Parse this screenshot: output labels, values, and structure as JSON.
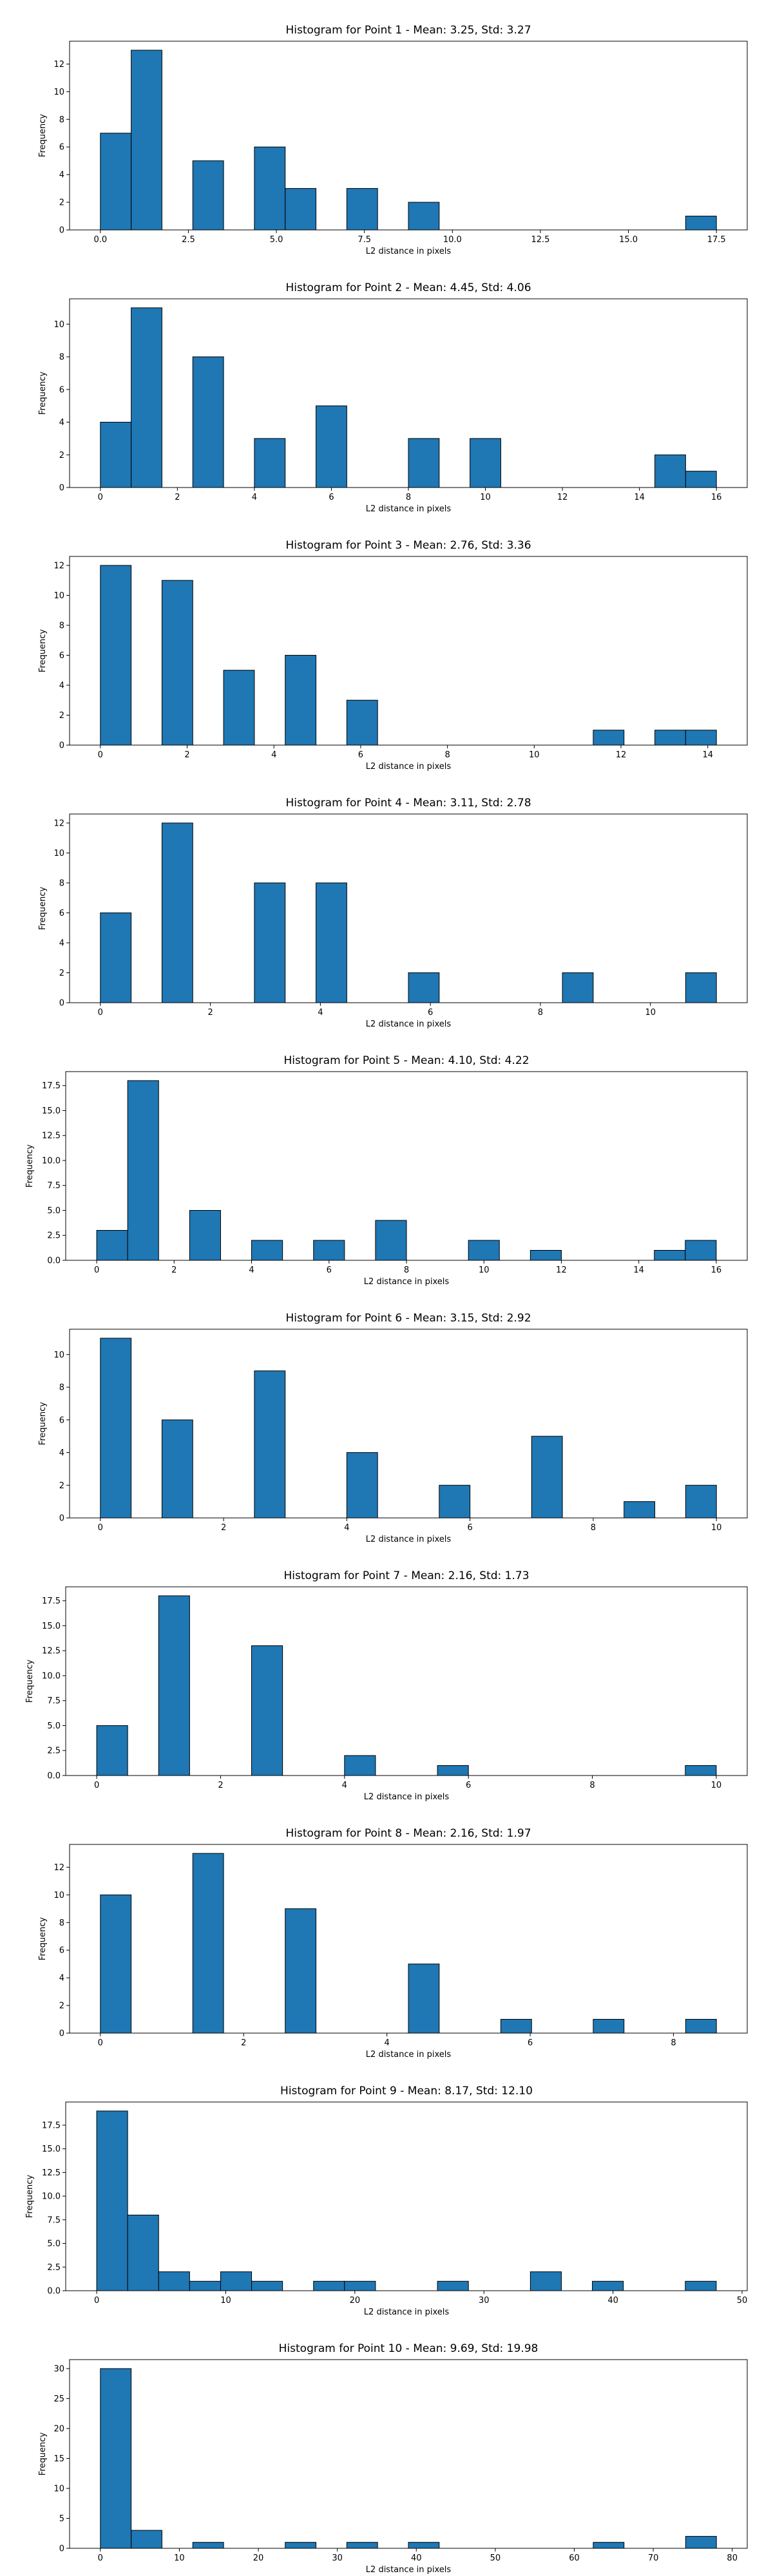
{
  "chart_data": [
    {
      "type": "bar",
      "title": "Histogram for Point 1 - Mean: 3.25, Std: 3.27",
      "xlabel": "L2 distance in pixels",
      "ylabel": "Frequency",
      "bin_edges": [
        0,
        0.875,
        1.75,
        2.625,
        3.5,
        4.375,
        5.25,
        6.125,
        7,
        7.875,
        8.75,
        9.625,
        10.5,
        11.375,
        12.25,
        13.125,
        14,
        14.875,
        15.75,
        16.625,
        17.5
      ],
      "values": [
        7,
        13,
        0,
        5,
        0,
        6,
        3,
        0,
        3,
        0,
        2,
        0,
        0,
        0,
        0,
        0,
        0,
        0,
        0,
        1
      ],
      "xticks": [
        0,
        2.5,
        5,
        7.5,
        10,
        12.5,
        15,
        17.5
      ],
      "xtick_labels": [
        "0.0",
        "2.5",
        "5.0",
        "7.5",
        "10.0",
        "12.5",
        "15.0",
        "17.5"
      ],
      "yticks": [
        0,
        2,
        4,
        6,
        8,
        10,
        12
      ],
      "ytick_labels": [
        "0",
        "2",
        "4",
        "6",
        "8",
        "10",
        "12"
      ],
      "ylim": [
        0,
        13.65
      ],
      "grid": false,
      "bar_color": "#1f77b4",
      "edge_color": "#000000"
    },
    {
      "type": "bar",
      "title": "Histogram for Point 2 - Mean: 4.45, Std: 4.06",
      "xlabel": "L2 distance in pixels",
      "ylabel": "Frequency",
      "bin_edges": [
        0,
        0.8,
        1.6,
        2.4,
        3.2,
        4,
        4.8,
        5.6,
        6.4,
        7.2,
        8,
        8.8,
        9.6,
        10.4,
        11.2,
        12,
        12.8,
        13.6,
        14.4,
        15.2,
        16
      ],
      "values": [
        4,
        11,
        0,
        8,
        0,
        3,
        0,
        5,
        0,
        0,
        3,
        0,
        3,
        0,
        0,
        0,
        0,
        0,
        2,
        1
      ],
      "xticks": [
        0,
        2,
        4,
        6,
        8,
        10,
        12,
        14,
        16
      ],
      "xtick_labels": [
        "0",
        "2",
        "4",
        "6",
        "8",
        "10",
        "12",
        "14",
        "16"
      ],
      "yticks": [
        0,
        2,
        4,
        6,
        8,
        10
      ],
      "ytick_labels": [
        "0",
        "2",
        "4",
        "6",
        "8",
        "10"
      ],
      "ylim": [
        0,
        11.55
      ],
      "grid": false,
      "bar_color": "#1f77b4",
      "edge_color": "#000000"
    },
    {
      "type": "bar",
      "title": "Histogram for Point 3 - Mean: 2.76, Std: 3.36",
      "xlabel": "L2 distance in pixels",
      "ylabel": "Frequency",
      "bin_edges": [
        0,
        0.71,
        1.42,
        2.13,
        2.84,
        3.55,
        4.26,
        4.97,
        5.68,
        6.39,
        7.1,
        7.81,
        8.52,
        9.23,
        9.94,
        10.65,
        11.36,
        12.07,
        12.78,
        13.49,
        14.2
      ],
      "values": [
        12,
        0,
        11,
        0,
        5,
        0,
        6,
        0,
        3,
        0,
        0,
        0,
        0,
        0,
        0,
        0,
        1,
        0,
        1,
        1
      ],
      "xticks": [
        0,
        2,
        4,
        6,
        8,
        10,
        12,
        14
      ],
      "xtick_labels": [
        "0",
        "2",
        "4",
        "6",
        "8",
        "10",
        "12",
        "14"
      ],
      "yticks": [
        0,
        2,
        4,
        6,
        8,
        10,
        12
      ],
      "ytick_labels": [
        "0",
        "2",
        "4",
        "6",
        "8",
        "10",
        "12"
      ],
      "ylim": [
        0,
        12.6
      ],
      "grid": false,
      "bar_color": "#1f77b4",
      "edge_color": "#000000"
    },
    {
      "type": "bar",
      "title": "Histogram for Point 4 - Mean: 3.11, Std: 2.78",
      "xlabel": "L2 distance in pixels",
      "ylabel": "Frequency",
      "bin_edges": [
        0,
        0.56,
        1.12,
        1.68,
        2.24,
        2.8,
        3.36,
        3.92,
        4.48,
        5.04,
        5.6,
        6.16,
        6.72,
        7.28,
        7.84,
        8.4,
        8.96,
        9.52,
        10.08,
        10.64,
        11.2
      ],
      "values": [
        6,
        0,
        12,
        0,
        0,
        8,
        0,
        8,
        0,
        0,
        2,
        0,
        0,
        0,
        0,
        2,
        0,
        0,
        0,
        2
      ],
      "xticks": [
        0,
        2,
        4,
        6,
        8,
        10
      ],
      "xtick_labels": [
        "0",
        "2",
        "4",
        "6",
        "8",
        "10"
      ],
      "yticks": [
        0,
        2,
        4,
        6,
        8,
        10,
        12
      ],
      "ytick_labels": [
        "0",
        "2",
        "4",
        "6",
        "8",
        "10",
        "12"
      ],
      "ylim": [
        0,
        12.6
      ],
      "grid": false,
      "bar_color": "#1f77b4",
      "edge_color": "#000000"
    },
    {
      "type": "bar",
      "title": "Histogram for Point 5 - Mean: 4.10, Std: 4.22",
      "xlabel": "L2 distance in pixels",
      "ylabel": "Frequency",
      "bin_edges": [
        0,
        0.8,
        1.6,
        2.4,
        3.2,
        4,
        4.8,
        5.6,
        6.4,
        7.2,
        8,
        8.8,
        9.6,
        10.4,
        11.2,
        12,
        12.8,
        13.6,
        14.4,
        15.2,
        16
      ],
      "values": [
        3,
        18,
        0,
        5,
        0,
        2,
        0,
        2,
        0,
        4,
        0,
        0,
        2,
        0,
        1,
        0,
        0,
        0,
        1,
        2
      ],
      "xticks": [
        0,
        2,
        4,
        6,
        8,
        10,
        12,
        14,
        16
      ],
      "xtick_labels": [
        "0",
        "2",
        "4",
        "6",
        "8",
        "10",
        "12",
        "14",
        "16"
      ],
      "yticks": [
        0,
        2.5,
        5,
        7.5,
        10,
        12.5,
        15,
        17.5
      ],
      "ytick_labels": [
        "0.0",
        "2.5",
        "5.0",
        "7.5",
        "10.0",
        "12.5",
        "15.0",
        "17.5"
      ],
      "ylim": [
        0,
        18.9
      ],
      "grid": false,
      "bar_color": "#1f77b4",
      "edge_color": "#000000"
    },
    {
      "type": "bar",
      "title": "Histogram for Point 6 - Mean: 3.15, Std: 2.92",
      "xlabel": "L2 distance in pixels",
      "ylabel": "Frequency",
      "bin_edges": [
        0,
        0.5,
        1,
        1.5,
        2,
        2.5,
        3,
        3.5,
        4,
        4.5,
        5,
        5.5,
        6,
        6.5,
        7,
        7.5,
        8,
        8.5,
        9,
        9.5,
        10
      ],
      "values": [
        11,
        0,
        6,
        0,
        0,
        9,
        0,
        0,
        4,
        0,
        0,
        2,
        0,
        0,
        5,
        0,
        0,
        1,
        0,
        2
      ],
      "xticks": [
        0,
        2,
        4,
        6,
        8,
        10
      ],
      "xtick_labels": [
        "0",
        "2",
        "4",
        "6",
        "8",
        "10"
      ],
      "yticks": [
        0,
        2,
        4,
        6,
        8,
        10
      ],
      "ytick_labels": [
        "0",
        "2",
        "4",
        "6",
        "8",
        "10"
      ],
      "ylim": [
        0,
        11.55
      ],
      "grid": false,
      "bar_color": "#1f77b4",
      "edge_color": "#000000"
    },
    {
      "type": "bar",
      "title": "Histogram for Point 7 - Mean: 2.16, Std: 1.73",
      "xlabel": "L2 distance in pixels",
      "ylabel": "Frequency",
      "bin_edges": [
        0,
        0.5,
        1,
        1.5,
        2,
        2.5,
        3,
        3.5,
        4,
        4.5,
        5,
        5.5,
        6,
        6.5,
        7,
        7.5,
        8,
        8.5,
        9,
        9.5,
        10
      ],
      "values": [
        5,
        0,
        18,
        0,
        0,
        13,
        0,
        0,
        2,
        0,
        0,
        1,
        0,
        0,
        0,
        0,
        0,
        0,
        0,
        1
      ],
      "xticks": [
        0,
        2,
        4,
        6,
        8,
        10
      ],
      "xtick_labels": [
        "0",
        "2",
        "4",
        "6",
        "8",
        "10"
      ],
      "yticks": [
        0,
        2.5,
        5,
        7.5,
        10,
        12.5,
        15,
        17.5
      ],
      "ytick_labels": [
        "0.0",
        "2.5",
        "5.0",
        "7.5",
        "10.0",
        "12.5",
        "15.0",
        "17.5"
      ],
      "ylim": [
        0,
        18.9
      ],
      "grid": false,
      "bar_color": "#1f77b4",
      "edge_color": "#000000"
    },
    {
      "type": "bar",
      "title": "Histogram for Point 8 - Mean: 2.16, Std: 1.97",
      "xlabel": "L2 distance in pixels",
      "ylabel": "Frequency",
      "bin_edges": [
        0,
        0.43,
        0.86,
        1.29,
        1.72,
        2.15,
        2.58,
        3.01,
        3.44,
        3.87,
        4.3,
        4.73,
        5.16,
        5.59,
        6.02,
        6.45,
        6.88,
        7.31,
        7.74,
        8.17,
        8.6
      ],
      "values": [
        10,
        0,
        0,
        13,
        0,
        0,
        9,
        0,
        0,
        0,
        5,
        0,
        0,
        1,
        0,
        0,
        1,
        0,
        0,
        1
      ],
      "xticks": [
        0,
        2,
        4,
        6,
        8
      ],
      "xtick_labels": [
        "0",
        "2",
        "4",
        "6",
        "8"
      ],
      "yticks": [
        0,
        2,
        4,
        6,
        8,
        10,
        12
      ],
      "ytick_labels": [
        "0",
        "2",
        "4",
        "6",
        "8",
        "10",
        "12"
      ],
      "ylim": [
        0,
        13.65
      ],
      "grid": false,
      "bar_color": "#1f77b4",
      "edge_color": "#000000"
    },
    {
      "type": "bar",
      "title": "Histogram for Point 9 - Mean: 8.17, Std: 12.10",
      "xlabel": "L2 distance in pixels",
      "ylabel": "Frequency",
      "bin_edges": [
        0,
        2.4,
        4.8,
        7.2,
        9.6,
        12,
        14.4,
        16.8,
        19.2,
        21.6,
        24,
        26.4,
        28.8,
        31.2,
        33.6,
        36,
        38.4,
        40.8,
        43.2,
        45.6,
        48
      ],
      "values": [
        19,
        8,
        2,
        1,
        2,
        1,
        0,
        1,
        1,
        0,
        0,
        1,
        0,
        0,
        2,
        0,
        1,
        0,
        0,
        1
      ],
      "xticks": [
        0,
        10,
        20,
        30,
        40,
        50
      ],
      "xtick_labels": [
        "0",
        "10",
        "20",
        "30",
        "40",
        "50"
      ],
      "yticks": [
        0,
        2.5,
        5,
        7.5,
        10,
        12.5,
        15,
        17.5
      ],
      "ytick_labels": [
        "0.0",
        "2.5",
        "5.0",
        "7.5",
        "10.0",
        "12.5",
        "15.0",
        "17.5"
      ],
      "ylim": [
        0,
        19.95
      ],
      "grid": false,
      "bar_color": "#1f77b4",
      "edge_color": "#000000"
    },
    {
      "type": "bar",
      "title": "Histogram for Point 10 - Mean: 9.69, Std: 19.98",
      "xlabel": "L2 distance in pixels",
      "ylabel": "Frequency",
      "bin_edges": [
        0,
        3.9,
        7.8,
        11.7,
        15.6,
        19.5,
        23.4,
        27.3,
        31.2,
        35.1,
        39,
        42.9,
        46.8,
        50.7,
        54.6,
        58.5,
        62.4,
        66.3,
        70.2,
        74.1,
        78
      ],
      "values": [
        30,
        3,
        0,
        1,
        0,
        0,
        1,
        0,
        1,
        0,
        1,
        0,
        0,
        0,
        0,
        0,
        1,
        0,
        0,
        2
      ],
      "xticks": [
        0,
        10,
        20,
        30,
        40,
        50,
        60,
        70,
        80
      ],
      "xtick_labels": [
        "0",
        "10",
        "20",
        "30",
        "40",
        "50",
        "60",
        "70",
        "80"
      ],
      "yticks": [
        0,
        5,
        10,
        15,
        20,
        25,
        30
      ],
      "ytick_labels": [
        "0",
        "5",
        "10",
        "15",
        "20",
        "25",
        "30"
      ],
      "ylim": [
        0,
        31.5
      ],
      "grid": false,
      "bar_color": "#1f77b4",
      "edge_color": "#000000"
    }
  ]
}
